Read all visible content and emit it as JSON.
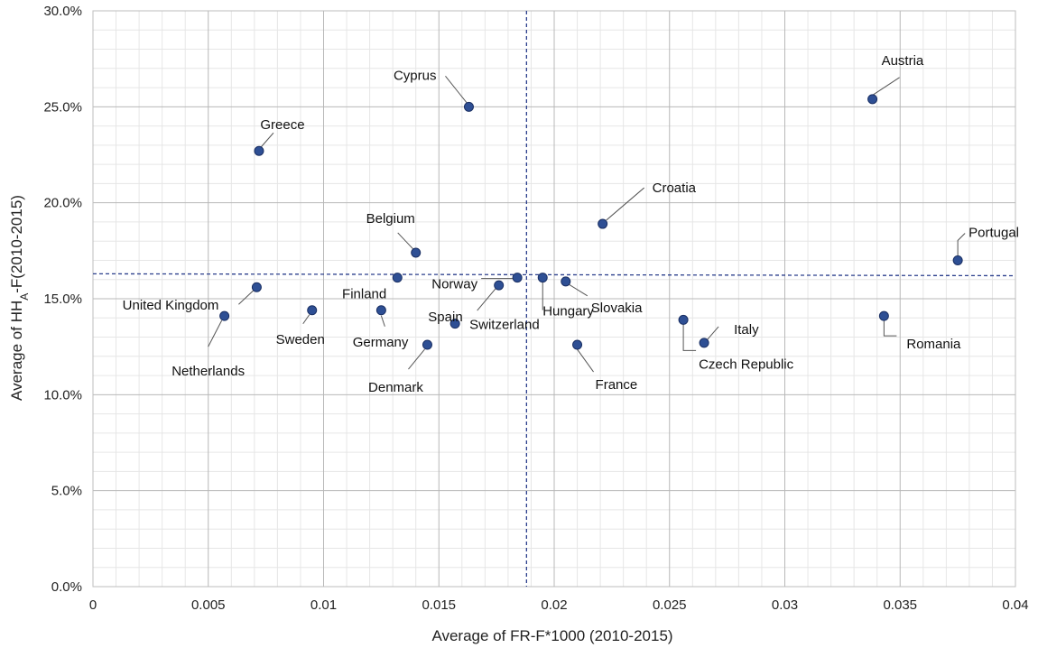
{
  "chart_data": {
    "type": "scatter",
    "title": "",
    "xlabel": "Average of FR-F*1000 (2010-2015)",
    "ylabel_parts": [
      "Average of HH",
      "A",
      "-F(2010-2015)"
    ],
    "xlim": [
      0,
      0.04
    ],
    "ylim": [
      0,
      0.3
    ],
    "x_ticks": [
      {
        "v": 0,
        "label": "0"
      },
      {
        "v": 0.005,
        "label": "0.005"
      },
      {
        "v": 0.01,
        "label": "0.01"
      },
      {
        "v": 0.015,
        "label": "0.015"
      },
      {
        "v": 0.02,
        "label": "0.02"
      },
      {
        "v": 0.025,
        "label": "0.025"
      },
      {
        "v": 0.03,
        "label": "0.03"
      },
      {
        "v": 0.035,
        "label": "0.035"
      },
      {
        "v": 0.04,
        "label": "0.04"
      }
    ],
    "y_ticks": [
      {
        "v": 0,
        "label": "0.0%"
      },
      {
        "v": 0.05,
        "label": "5.0%"
      },
      {
        "v": 0.1,
        "label": "10.0%"
      },
      {
        "v": 0.15,
        "label": "15.0%"
      },
      {
        "v": 0.2,
        "label": "20.0%"
      },
      {
        "v": 0.25,
        "label": "25.0%"
      },
      {
        "v": 0.3,
        "label": "30.0%"
      }
    ],
    "grid": true,
    "reference_lines": {
      "x": 0.0188,
      "y_left": 0.163,
      "y_right": 0.162
    },
    "marker_color": "#2e4f94",
    "points": [
      {
        "name": "Austria",
        "x": 0.0338,
        "y": 0.254
      },
      {
        "name": "Cyprus",
        "x": 0.0163,
        "y": 0.25
      },
      {
        "name": "Greece",
        "x": 0.0072,
        "y": 0.227
      },
      {
        "name": "Croatia",
        "x": 0.0221,
        "y": 0.189
      },
      {
        "name": "Belgium",
        "x": 0.014,
        "y": 0.174
      },
      {
        "name": "Portugal",
        "x": 0.0375,
        "y": 0.17
      },
      {
        "name": "Norway",
        "x": 0.0184,
        "y": 0.161
      },
      {
        "name": "Finland",
        "x": 0.0132,
        "y": 0.161
      },
      {
        "name": "Hungary",
        "x": 0.0195,
        "y": 0.161
      },
      {
        "name": "Slovakia",
        "x": 0.0205,
        "y": 0.159
      },
      {
        "name": "Spain",
        "x": 0.0176,
        "y": 0.157
      },
      {
        "name": "United Kingdom",
        "x": 0.0071,
        "y": 0.156
      },
      {
        "name": "Germany",
        "x": 0.0125,
        "y": 0.144
      },
      {
        "name": "Sweden",
        "x": 0.0095,
        "y": 0.144
      },
      {
        "name": "Netherlands",
        "x": 0.0057,
        "y": 0.141
      },
      {
        "name": "Romania",
        "x": 0.0343,
        "y": 0.141
      },
      {
        "name": "Czech Republic",
        "x": 0.0256,
        "y": 0.139
      },
      {
        "name": "Switzerland",
        "x": 0.0157,
        "y": 0.137
      },
      {
        "name": "Italy",
        "x": 0.0265,
        "y": 0.127
      },
      {
        "name": "France",
        "x": 0.021,
        "y": 0.126
      },
      {
        "name": "Denmark",
        "x": 0.0145,
        "y": 0.126
      }
    ]
  }
}
